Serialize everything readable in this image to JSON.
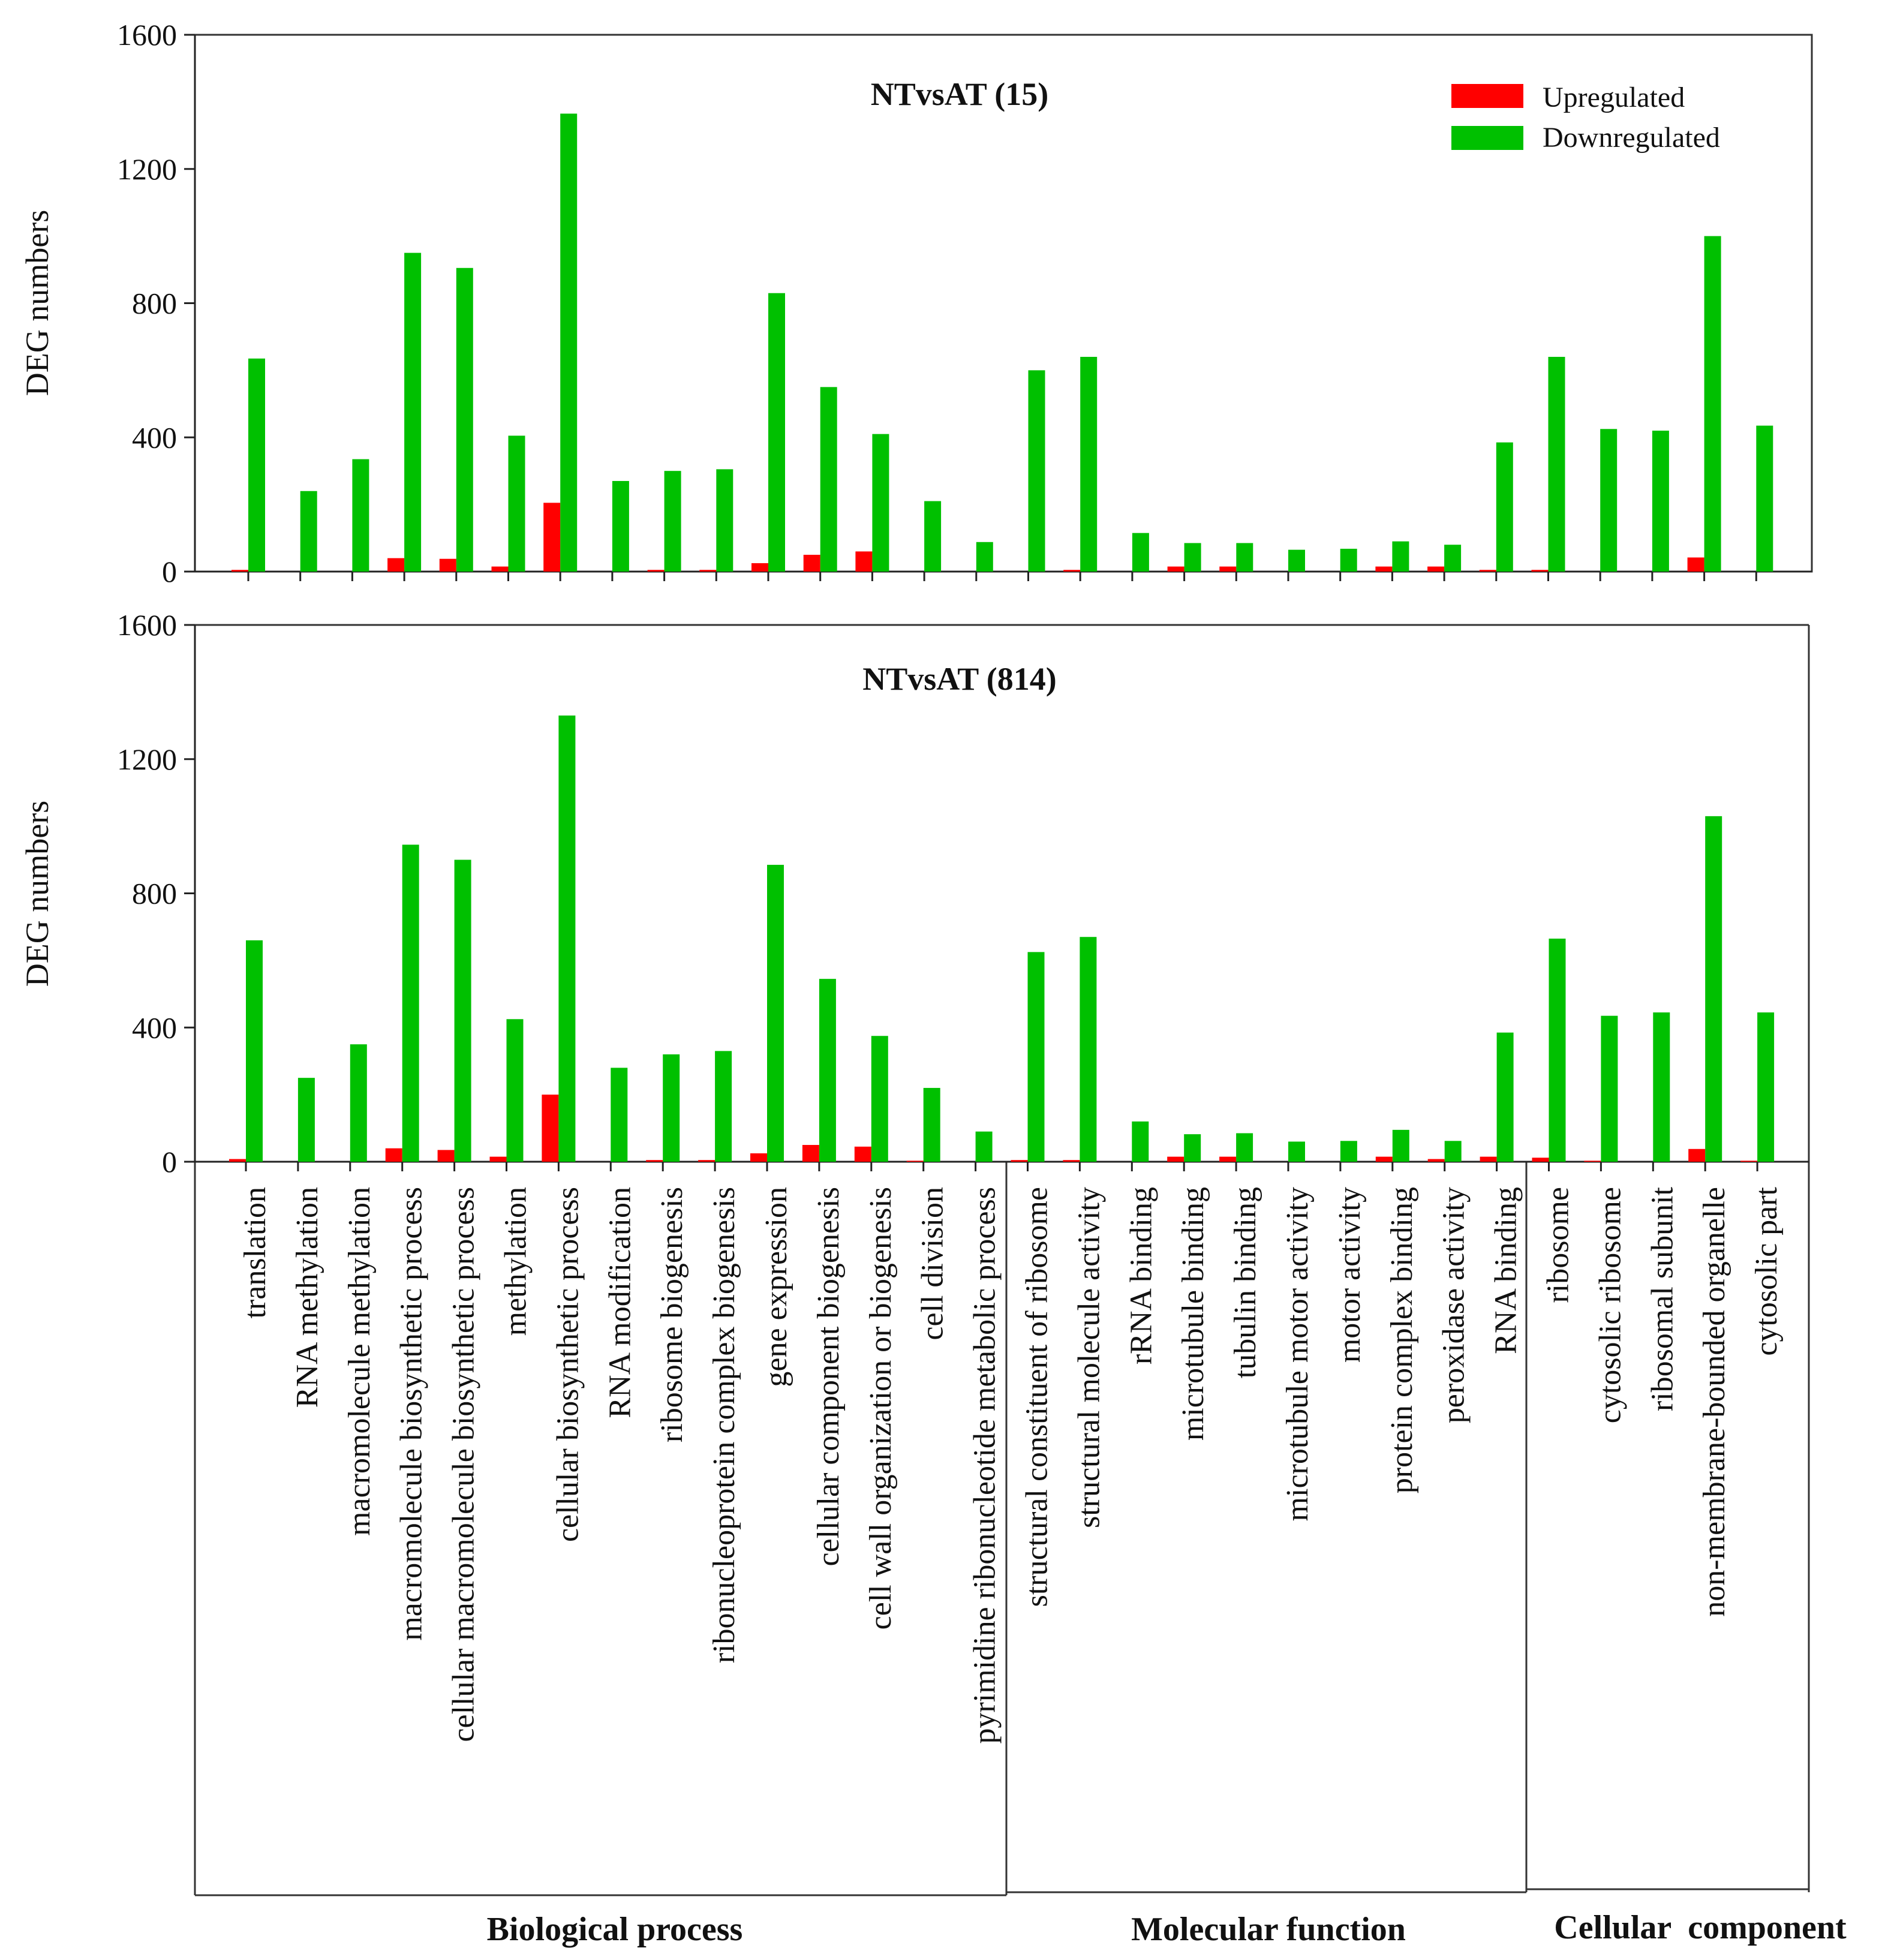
{
  "colors": {
    "up": "#ff0000",
    "down": "#00c000"
  },
  "legend": {
    "up_label": "Upregulated",
    "down_label": "Downregulated"
  },
  "chart_data": {
    "type": "bar",
    "ylabel": "DEG numbers",
    "ylim": [
      0,
      1600
    ],
    "yticks": [
      0,
      400,
      800,
      1200,
      1600
    ],
    "categories": [
      "translation",
      "RNA methylation",
      "macromolecule methylation",
      "macromolecule biosynthetic process",
      "cellular macromolecule biosynthetic process",
      "methylation",
      "cellular biosynthetic process",
      "RNA modification",
      "ribosome biogenesis",
      "ribonucleoprotein complex biogenesis",
      "gene expression",
      "cellular component biogenesis",
      "cell wall organization or biogenesis",
      "cell division",
      "pyrimidine ribonucleotide metabolic process",
      "structural constituent of ribosome",
      "structural molecule activity",
      "rRNA binding",
      "microtubule binding",
      "tubulin binding",
      "microtubule motor activity",
      "motor activity",
      "protein complex binding",
      "peroxidase activity",
      "RNA binding",
      "ribosome",
      "cytosolic ribosome",
      "ribosomal subunit",
      "non-membrane-bounded organelle",
      "cytosolic part"
    ],
    "groups": [
      {
        "name": "Biological process",
        "start": 0,
        "end": 14
      },
      {
        "name": "Molecular function",
        "start": 15,
        "end": 24
      },
      {
        "name": "Cellular  component",
        "start": 25,
        "end": 29
      }
    ],
    "panels": [
      {
        "title": "NTvsAT (15)",
        "series": [
          {
            "name": "Upregulated",
            "values": [
              5,
              0,
              0,
              40,
              38,
              15,
              205,
              0,
              5,
              5,
              25,
              50,
              60,
              0,
              0,
              0,
              5,
              0,
              15,
              15,
              0,
              0,
              15,
              15,
              5,
              5,
              0,
              0,
              42,
              0
            ]
          },
          {
            "name": "Downregulated",
            "values": [
              635,
              240,
              335,
              950,
              905,
              405,
              1365,
              270,
              300,
              305,
              830,
              550,
              410,
              210,
              88,
              600,
              640,
              115,
              85,
              85,
              65,
              68,
              90,
              80,
              385,
              640,
              425,
              420,
              1000,
              435
            ]
          }
        ]
      },
      {
        "title": "NTvsAT (814)",
        "series": [
          {
            "name": "Upregulated",
            "values": [
              8,
              0,
              0,
              40,
              35,
              15,
              200,
              0,
              5,
              5,
              25,
              50,
              45,
              3,
              0,
              5,
              5,
              0,
              15,
              15,
              0,
              0,
              15,
              8,
              15,
              12,
              3,
              0,
              38,
              3
            ]
          },
          {
            "name": "Downregulated",
            "values": [
              660,
              250,
              350,
              945,
              900,
              425,
              1330,
              280,
              320,
              330,
              885,
              545,
              375,
              220,
              90,
              625,
              670,
              120,
              82,
              85,
              60,
              62,
              95,
              62,
              385,
              665,
              435,
              445,
              1030,
              445
            ]
          }
        ]
      }
    ]
  }
}
